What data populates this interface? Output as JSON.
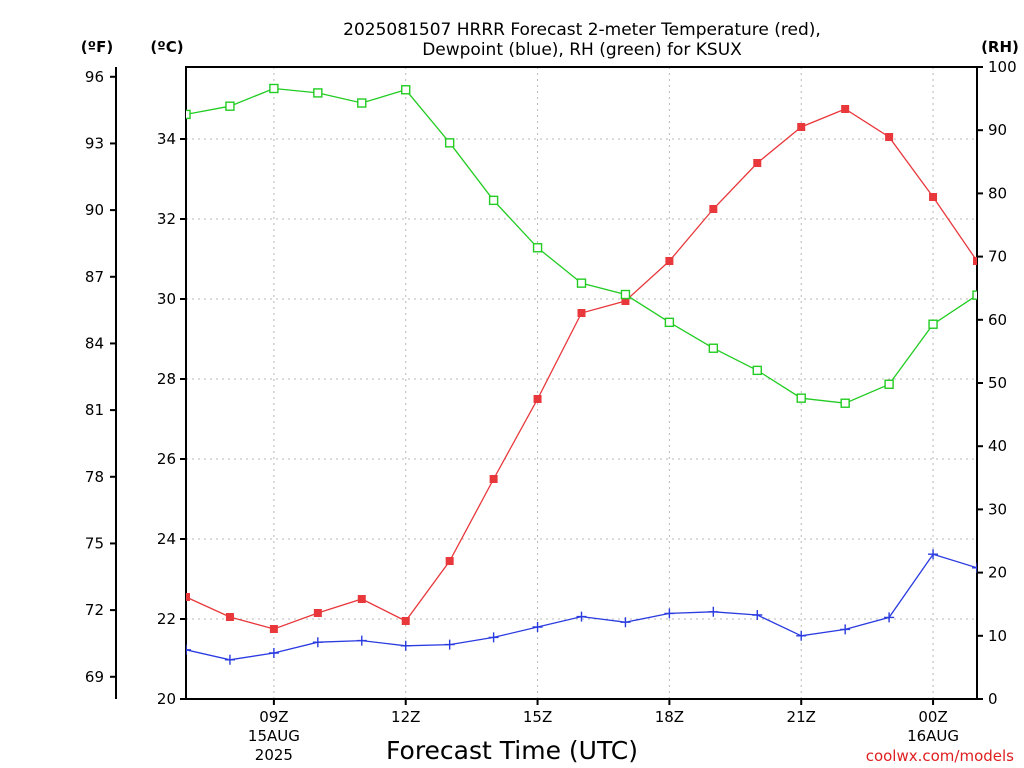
{
  "chart_data": {
    "type": "line",
    "title": "2025081507 HRRR Forecast 2-meter Temperature (red),",
    "subtitle": "Dewpoint (blue), RH (green) for KSUX",
    "xlabel": "Forecast Time (UTC)",
    "credit": "coolwx.com/models",
    "units": {
      "fahrenheit": "(ºF)",
      "celsius": "(ºC)",
      "rh": "(RH)"
    },
    "x_forecast_hours": [
      7,
      8,
      9,
      10,
      11,
      12,
      13,
      14,
      15,
      16,
      17,
      18,
      19,
      20,
      21,
      22,
      23,
      24,
      25
    ],
    "xlim": [
      7,
      25
    ],
    "x_ticks": [
      {
        "hour": 9,
        "label": "09Z",
        "date": "15AUG",
        "year": "2025"
      },
      {
        "hour": 12,
        "label": "12Z"
      },
      {
        "hour": 15,
        "label": "15Z"
      },
      {
        "hour": 18,
        "label": "18Z"
      },
      {
        "hour": 21,
        "label": "21Z"
      },
      {
        "hour": 24,
        "label": "00Z",
        "date": "16AUG"
      }
    ],
    "left_axis_celsius": {
      "ylim": [
        20,
        35.8
      ],
      "ticks": [
        "20",
        "22",
        "24",
        "26",
        "28",
        "30",
        "32",
        "34"
      ]
    },
    "left_axis_fahrenheit": {
      "ticks": [
        "69",
        "72",
        "75",
        "78",
        "81",
        "84",
        "87",
        "90",
        "93",
        "96"
      ]
    },
    "right_axis_rh": {
      "ylim": [
        0,
        100
      ],
      "ticks": [
        "0",
        "10",
        "20",
        "30",
        "40",
        "50",
        "60",
        "70",
        "80",
        "90",
        "100"
      ]
    },
    "series": [
      {
        "name": "Temperature (red)",
        "axis": "celsius",
        "color": "#e8383c",
        "marker": "filled-square",
        "values": [
          22.55,
          22.05,
          21.75,
          22.15,
          22.5,
          21.95,
          23.45,
          25.5,
          27.5,
          29.65,
          29.95,
          30.95,
          32.25,
          33.4,
          34.3,
          34.75,
          34.05,
          32.55,
          30.95
        ]
      },
      {
        "name": "Dewpoint (blue)",
        "axis": "celsius",
        "color": "#2a3be0",
        "marker": "plus",
        "values": [
          21.23,
          20.98,
          21.15,
          21.42,
          21.46,
          21.33,
          21.36,
          21.54,
          21.8,
          22.06,
          21.92,
          22.14,
          22.18,
          22.1,
          21.58,
          21.74,
          22.04,
          23.62,
          23.28
        ]
      },
      {
        "name": "RH (green)",
        "axis": "rh",
        "color": "#22cc22",
        "marker": "open-square",
        "values": [
          92.5,
          93.8,
          96.6,
          95.9,
          94.3,
          96.4,
          88.0,
          78.9,
          71.4,
          65.8,
          64.0,
          59.6,
          55.5,
          52.0,
          47.6,
          46.8,
          49.8,
          59.3,
          63.9
        ]
      }
    ]
  }
}
